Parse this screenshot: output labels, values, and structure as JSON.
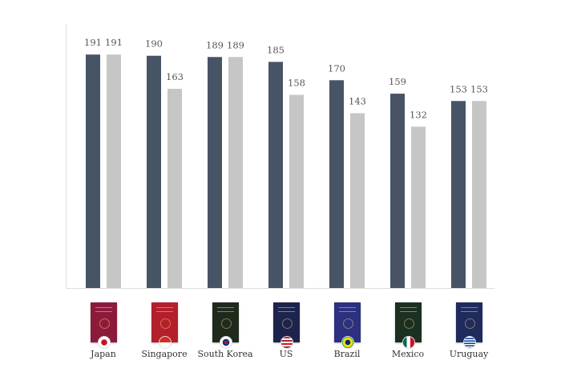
{
  "chart_data": {
    "type": "bar",
    "categories": [
      "Japan",
      "Singapore",
      "South Korea",
      "US",
      "Brazil",
      "Mexico",
      "Uruguay"
    ],
    "series": [
      {
        "values": [
          191,
          190,
          189,
          185,
          170,
          159,
          153
        ],
        "color": "#475466"
      },
      {
        "values": [
          191,
          163,
          189,
          158,
          143,
          132,
          153
        ],
        "color": "#c6c6c6"
      }
    ],
    "ylim": [
      0,
      216
    ],
    "grid": false,
    "data_labels": true,
    "passport_images": [
      {
        "country": "Japan",
        "cover_color": "#8c1b3b",
        "flag": "japan-flag-icon"
      },
      {
        "country": "Singapore",
        "cover_color": "#b31f2b",
        "flag": "singapore-flag-icon"
      },
      {
        "country": "South Korea",
        "cover_color": "#1f2a1d",
        "flag": "south-korea-flag-icon"
      },
      {
        "country": "US",
        "cover_color": "#1c244e",
        "flag": "us-flag-icon"
      },
      {
        "country": "Brazil",
        "cover_color": "#2b3080",
        "flag": "brazil-flag-icon"
      },
      {
        "country": "Mexico",
        "cover_color": "#1b3020",
        "flag": "mexico-flag-icon"
      },
      {
        "country": "Uruguay",
        "cover_color": "#1f2b5c",
        "flag": "uruguay-flag-icon"
      }
    ]
  }
}
